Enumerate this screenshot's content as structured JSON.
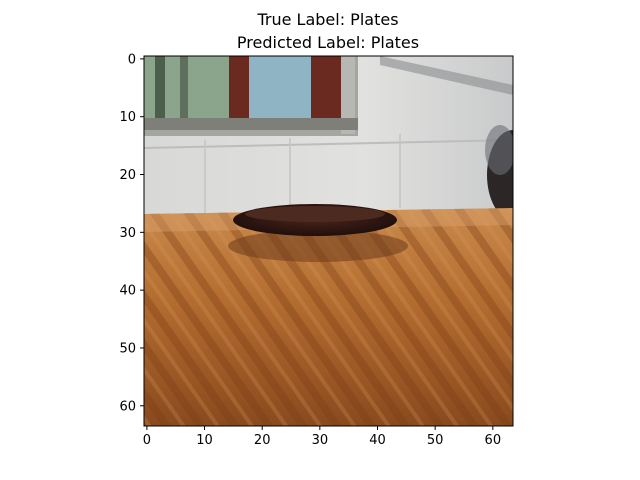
{
  "figure": {
    "title_line_1": "True Label: Plates",
    "title_line_2": "Predicted Label: Plates"
  },
  "axes": {
    "x_ticks": [
      "0",
      "10",
      "20",
      "30",
      "40",
      "50",
      "60"
    ],
    "y_ticks": [
      "0",
      "10",
      "20",
      "30",
      "40",
      "50",
      "60"
    ]
  },
  "image": {
    "subject": "dark round plate on a wooden table in front of a window and white wall",
    "colors": {
      "wall": "#dcdcdc",
      "window_frame": "#6b2a1f",
      "window_glass": "#8fb4c4",
      "table": "#b06a2e",
      "plate": "#2a1410"
    }
  }
}
